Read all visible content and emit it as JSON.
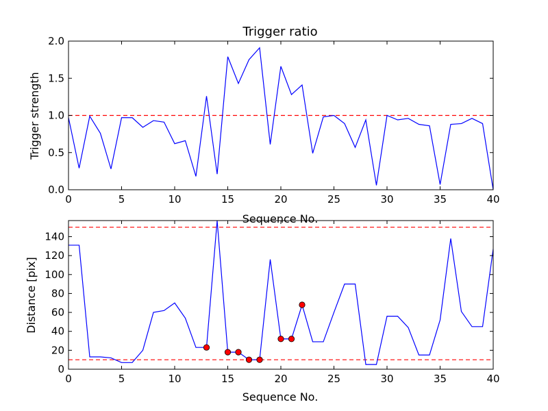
{
  "chart_data": [
    {
      "type": "line",
      "title": "Trigger ratio",
      "xlabel": "Sequence No.",
      "ylabel": "Trigger strength",
      "xlim": [
        0,
        40
      ],
      "ylim": [
        0,
        2.0
      ],
      "xticks": [
        0,
        5,
        10,
        15,
        20,
        25,
        30,
        35,
        40
      ],
      "xtick_labels": [
        "0",
        "5",
        "10",
        "15",
        "20",
        "25",
        "30",
        "35",
        "40"
      ],
      "yticks": [
        0,
        0.5,
        1.0,
        1.5,
        2.0
      ],
      "ytick_labels": [
        "0.0",
        "0.5",
        "1.0",
        "1.5",
        "2.0"
      ],
      "series": [
        {
          "name": "Trigger strength",
          "color": "#0000ff",
          "x": [
            0,
            1,
            2,
            3,
            4,
            5,
            6,
            7,
            8,
            9,
            10,
            11,
            12,
            13,
            14,
            15,
            16,
            17,
            18,
            19,
            20,
            21,
            22,
            23,
            24,
            25,
            26,
            27,
            28,
            29,
            30,
            31,
            32,
            33,
            34,
            35,
            36,
            37,
            38,
            39,
            40
          ],
          "y": [
            0.97,
            0.29,
            0.99,
            0.76,
            0.28,
            0.97,
            0.97,
            0.84,
            0.93,
            0.91,
            0.62,
            0.66,
            0.18,
            1.26,
            0.21,
            1.79,
            1.43,
            1.75,
            1.91,
            0.61,
            1.66,
            1.28,
            1.41,
            0.49,
            0.98,
            1.0,
            0.89,
            0.57,
            0.94,
            0.06,
            1.0,
            0.94,
            0.96,
            0.88,
            0.86,
            0.07,
            0.88,
            0.89,
            0.96,
            0.89,
            0.0
          ]
        }
      ],
      "hlines": [
        {
          "y": 1.0,
          "color": "#ff0000",
          "style": "dashed"
        }
      ]
    },
    {
      "type": "line",
      "title": "",
      "xlabel": "Sequence No.",
      "ylabel": "Distance [pix]",
      "xlim": [
        0,
        40
      ],
      "ylim": [
        0,
        157
      ],
      "xticks": [
        0,
        5,
        10,
        15,
        20,
        25,
        30,
        35,
        40
      ],
      "xtick_labels": [
        "0",
        "5",
        "10",
        "15",
        "20",
        "25",
        "30",
        "35",
        "40"
      ],
      "yticks": [
        0,
        20,
        40,
        60,
        80,
        100,
        120,
        140
      ],
      "ytick_labels": [
        "0",
        "20",
        "40",
        "60",
        "80",
        "100",
        "120",
        "140"
      ],
      "series": [
        {
          "name": "Distance",
          "color": "#0000ff",
          "x": [
            0,
            1,
            2,
            3,
            4,
            5,
            6,
            7,
            8,
            9,
            10,
            11,
            12,
            13,
            14,
            15,
            16,
            17,
            18,
            19,
            20,
            21,
            22,
            23,
            24,
            25,
            26,
            27,
            28,
            29,
            30,
            31,
            32,
            33,
            34,
            35,
            36,
            37,
            38,
            39,
            40
          ],
          "y": [
            131,
            131,
            13,
            13,
            12,
            7,
            7,
            20,
            60,
            62,
            70,
            54,
            23,
            23,
            157,
            18,
            18,
            10,
            10,
            116,
            32,
            32,
            68,
            29,
            29,
            60,
            90,
            90,
            5,
            5,
            56,
            56,
            44,
            15,
            15,
            52,
            138,
            61,
            45,
            45,
            127
          ]
        }
      ],
      "markers": {
        "color": "#ff0000",
        "x": [
          13,
          15,
          16,
          17,
          18,
          20,
          21,
          22
        ],
        "y": [
          23,
          18,
          18,
          10,
          10,
          32,
          32,
          68
        ]
      },
      "hlines": [
        {
          "y": 150,
          "color": "#ff0000",
          "style": "dashed"
        },
        {
          "y": 10,
          "color": "#ff0000",
          "style": "dashed"
        }
      ]
    }
  ]
}
